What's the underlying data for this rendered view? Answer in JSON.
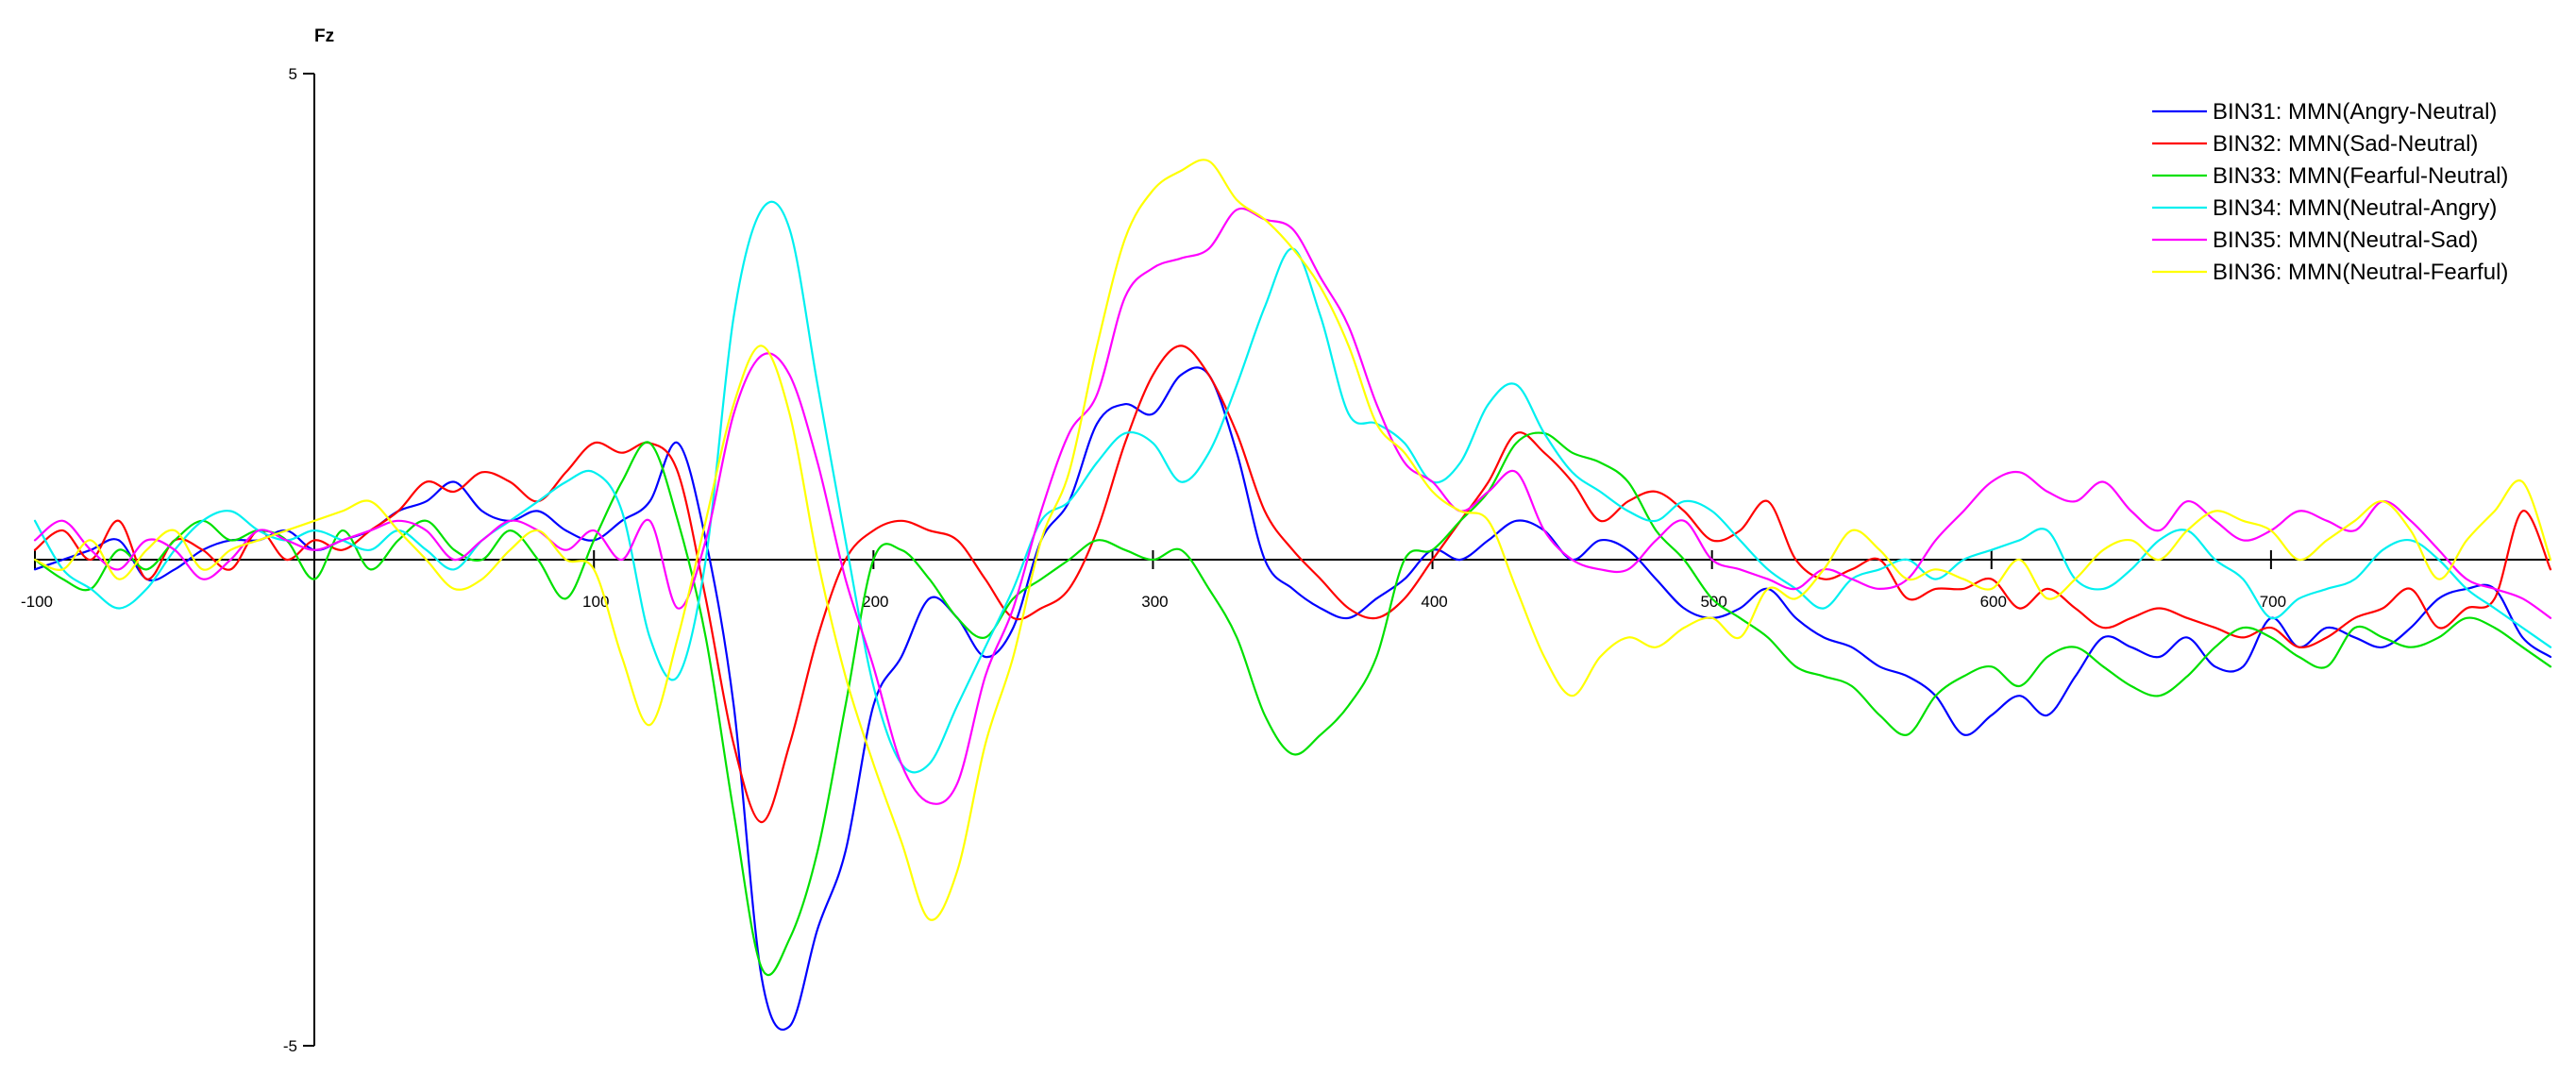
{
  "chart_data": {
    "type": "line",
    "title": "Fz",
    "xlabel": "",
    "ylabel": "",
    "xlim": [
      -100,
      800
    ],
    "ylim": [
      -5,
      5
    ],
    "x_ticks": [
      -100,
      100,
      200,
      300,
      400,
      500,
      600,
      700
    ],
    "x_tick_labels": [
      "-100",
      "100",
      "200",
      "300",
      "400",
      "500",
      "600",
      "700"
    ],
    "y_ticks": [
      5,
      -5
    ],
    "y_tick_labels": [
      "5",
      "-5"
    ],
    "grid": false,
    "legend_position": "top-right",
    "colors": {
      "axis": "#000000",
      "BIN31": "#0000ff",
      "BIN32": "#ff0000",
      "BIN33": "#00e000",
      "BIN34": "#00f0f0",
      "BIN35": "#ff00ff",
      "BIN36": "#ffff00"
    },
    "series": [
      {
        "name": "BIN31: MMN(Angry-Neutral)",
        "color": "#0000ff",
        "x": [
          -100,
          -90,
          -80,
          -70,
          -60,
          -50,
          -40,
          -30,
          -20,
          -10,
          0,
          10,
          20,
          30,
          40,
          50,
          60,
          70,
          80,
          90,
          100,
          110,
          120,
          130,
          140,
          150,
          160,
          170,
          180,
          190,
          200,
          210,
          220,
          230,
          240,
          250,
          260,
          270,
          280,
          290,
          300,
          310,
          320,
          330,
          340,
          350,
          360,
          370,
          380,
          390,
          400,
          410,
          420,
          430,
          440,
          450,
          460,
          470,
          480,
          490,
          500,
          510,
          520,
          530,
          540,
          550,
          560,
          570,
          580,
          590,
          600,
          610,
          620,
          630,
          640,
          650,
          660,
          670,
          680,
          690,
          700,
          710,
          720,
          730,
          740,
          750,
          760,
          770,
          780,
          790,
          800
        ],
        "y": [
          -0.1,
          0.0,
          0.1,
          0.2,
          -0.2,
          -0.1,
          0.1,
          0.2,
          0.2,
          0.3,
          0.1,
          0.2,
          0.3,
          0.5,
          0.6,
          0.8,
          0.5,
          0.4,
          0.5,
          0.3,
          0.2,
          0.4,
          0.6,
          1.2,
          0.2,
          -1.5,
          -4.3,
          -4.8,
          -3.8,
          -3.0,
          -1.5,
          -1.0,
          -0.4,
          -0.6,
          -1.0,
          -0.7,
          0.2,
          0.6,
          1.4,
          1.6,
          1.5,
          1.9,
          1.9,
          1.1,
          0.0,
          -0.3,
          -0.5,
          -0.6,
          -0.4,
          -0.2,
          0.1,
          0.0,
          0.2,
          0.4,
          0.3,
          0.0,
          0.2,
          0.1,
          -0.2,
          -0.5,
          -0.6,
          -0.5,
          -0.3,
          -0.6,
          -0.8,
          -0.9,
          -1.1,
          -1.2,
          -1.4,
          -1.8,
          -1.6,
          -1.4,
          -1.6,
          -1.2,
          -0.8,
          -0.9,
          -1.0,
          -0.8,
          -1.1,
          -1.1,
          -0.6,
          -0.9,
          -0.7,
          -0.8,
          -0.9,
          -0.7,
          -0.4,
          -0.3,
          -0.3,
          -0.8,
          -1.0
        ]
      },
      {
        "name": "BIN32: MMN(Sad-Neutral)",
        "color": "#ff0000",
        "x": [
          -100,
          -90,
          -80,
          -70,
          -60,
          -50,
          -40,
          -30,
          -20,
          -10,
          0,
          10,
          20,
          30,
          40,
          50,
          60,
          70,
          80,
          90,
          100,
          110,
          120,
          130,
          140,
          150,
          160,
          170,
          180,
          190,
          200,
          210,
          220,
          230,
          240,
          250,
          260,
          270,
          280,
          290,
          300,
          310,
          320,
          330,
          340,
          350,
          360,
          370,
          380,
          390,
          400,
          410,
          420,
          430,
          440,
          450,
          460,
          470,
          480,
          490,
          500,
          510,
          520,
          530,
          540,
          550,
          560,
          570,
          580,
          590,
          600,
          610,
          620,
          630,
          640,
          650,
          660,
          670,
          680,
          690,
          700,
          710,
          720,
          730,
          740,
          750,
          760,
          770,
          780,
          790,
          800
        ],
        "y": [
          0.1,
          0.3,
          0.0,
          0.4,
          -0.2,
          0.2,
          0.1,
          -0.1,
          0.3,
          0.0,
          0.2,
          0.1,
          0.3,
          0.5,
          0.8,
          0.7,
          0.9,
          0.8,
          0.6,
          0.9,
          1.2,
          1.1,
          1.2,
          0.9,
          -0.4,
          -1.9,
          -2.7,
          -1.9,
          -0.8,
          0.0,
          0.3,
          0.4,
          0.3,
          0.2,
          -0.2,
          -0.6,
          -0.5,
          -0.3,
          0.3,
          1.2,
          1.9,
          2.2,
          1.9,
          1.3,
          0.5,
          0.1,
          -0.2,
          -0.5,
          -0.6,
          -0.4,
          0.0,
          0.4,
          0.8,
          1.3,
          1.1,
          0.8,
          0.4,
          0.6,
          0.7,
          0.5,
          0.2,
          0.3,
          0.6,
          0.0,
          -0.2,
          -0.1,
          0.0,
          -0.4,
          -0.3,
          -0.3,
          -0.2,
          -0.5,
          -0.3,
          -0.5,
          -0.7,
          -0.6,
          -0.5,
          -0.6,
          -0.7,
          -0.8,
          -0.7,
          -0.9,
          -0.8,
          -0.6,
          -0.5,
          -0.3,
          -0.7,
          -0.5,
          -0.4,
          0.5,
          -0.1
        ]
      },
      {
        "name": "BIN33: MMN(Fearful-Neutral)",
        "color": "#00e000",
        "x": [
          -100,
          -90,
          -80,
          -70,
          -60,
          -50,
          -40,
          -30,
          -20,
          -10,
          0,
          10,
          20,
          30,
          40,
          50,
          60,
          70,
          80,
          90,
          100,
          110,
          120,
          130,
          140,
          150,
          160,
          170,
          180,
          190,
          200,
          210,
          220,
          230,
          240,
          250,
          260,
          270,
          280,
          290,
          300,
          310,
          320,
          330,
          340,
          350,
          360,
          370,
          380,
          390,
          400,
          410,
          420,
          430,
          440,
          450,
          460,
          470,
          480,
          490,
          500,
          510,
          520,
          530,
          540,
          550,
          560,
          570,
          580,
          590,
          600,
          610,
          620,
          630,
          640,
          650,
          660,
          670,
          680,
          690,
          700,
          710,
          720,
          730,
          740,
          750,
          760,
          770,
          780,
          790,
          800
        ],
        "y": [
          0.0,
          -0.2,
          -0.3,
          0.1,
          -0.1,
          0.2,
          0.4,
          0.2,
          0.3,
          0.2,
          -0.2,
          0.3,
          -0.1,
          0.2,
          0.4,
          0.1,
          0.0,
          0.3,
          0.0,
          -0.4,
          0.2,
          0.8,
          1.2,
          0.4,
          -0.8,
          -2.6,
          -4.2,
          -3.9,
          -3.0,
          -1.5,
          0.0,
          0.1,
          -0.2,
          -0.6,
          -0.8,
          -0.4,
          -0.2,
          0.0,
          0.2,
          0.1,
          0.0,
          0.1,
          -0.3,
          -0.8,
          -1.6,
          -2.0,
          -1.8,
          -1.5,
          -1.0,
          0.0,
          0.1,
          0.4,
          0.7,
          1.2,
          1.3,
          1.1,
          1.0,
          0.8,
          0.3,
          0.0,
          -0.4,
          -0.6,
          -0.8,
          -1.1,
          -1.2,
          -1.3,
          -1.6,
          -1.8,
          -1.4,
          -1.2,
          -1.1,
          -1.3,
          -1.0,
          -0.9,
          -1.1,
          -1.3,
          -1.4,
          -1.2,
          -0.9,
          -0.7,
          -0.8,
          -1.0,
          -1.1,
          -0.7,
          -0.8,
          -0.9,
          -0.8,
          -0.6,
          -0.7,
          -0.9,
          -1.1
        ]
      },
      {
        "name": "BIN34: MMN(Neutral-Angry)",
        "color": "#00f0f0",
        "x": [
          -100,
          -90,
          -80,
          -70,
          -60,
          -50,
          -40,
          -30,
          -20,
          -10,
          0,
          10,
          20,
          30,
          40,
          50,
          60,
          70,
          80,
          90,
          100,
          110,
          120,
          130,
          140,
          150,
          160,
          170,
          180,
          190,
          200,
          210,
          220,
          230,
          240,
          250,
          260,
          270,
          280,
          290,
          300,
          310,
          320,
          330,
          340,
          350,
          360,
          370,
          380,
          390,
          400,
          410,
          420,
          430,
          440,
          450,
          460,
          470,
          480,
          490,
          500,
          510,
          520,
          530,
          540,
          550,
          560,
          570,
          580,
          590,
          600,
          610,
          620,
          630,
          640,
          650,
          660,
          670,
          680,
          690,
          700,
          710,
          720,
          730,
          740,
          750,
          760,
          770,
          780,
          790,
          800
        ],
        "y": [
          0.4,
          -0.1,
          -0.3,
          -0.5,
          -0.3,
          0.1,
          0.4,
          0.5,
          0.3,
          0.2,
          0.3,
          0.2,
          0.1,
          0.3,
          0.1,
          -0.1,
          0.2,
          0.4,
          0.6,
          0.8,
          0.9,
          0.5,
          -0.8,
          -1.2,
          0.0,
          2.5,
          3.6,
          3.4,
          1.8,
          0.2,
          -1.3,
          -2.1,
          -2.1,
          -1.5,
          -0.9,
          -0.3,
          0.4,
          0.6,
          1.0,
          1.3,
          1.2,
          0.8,
          1.1,
          1.8,
          2.6,
          3.2,
          2.5,
          1.5,
          1.4,
          1.2,
          0.8,
          1.0,
          1.6,
          1.8,
          1.3,
          0.9,
          0.7,
          0.5,
          0.4,
          0.6,
          0.5,
          0.2,
          -0.1,
          -0.3,
          -0.5,
          -0.2,
          -0.1,
          0.0,
          -0.2,
          0.0,
          0.1,
          0.2,
          0.3,
          -0.2,
          -0.3,
          -0.1,
          0.2,
          0.3,
          0.0,
          -0.2,
          -0.6,
          -0.4,
          -0.3,
          -0.2,
          0.1,
          0.2,
          0.0,
          -0.3,
          -0.5,
          -0.7,
          -0.9
        ]
      },
      {
        "name": "BIN35: MMN(Neutral-Sad)",
        "color": "#ff00ff",
        "x": [
          -100,
          -90,
          -80,
          -70,
          -60,
          -50,
          -40,
          -30,
          -20,
          -10,
          0,
          10,
          20,
          30,
          40,
          50,
          60,
          70,
          80,
          90,
          100,
          110,
          120,
          130,
          140,
          150,
          160,
          170,
          180,
          190,
          200,
          210,
          220,
          230,
          240,
          250,
          260,
          270,
          280,
          290,
          300,
          310,
          320,
          330,
          340,
          350,
          360,
          370,
          380,
          390,
          400,
          410,
          420,
          430,
          440,
          450,
          460,
          470,
          480,
          490,
          500,
          510,
          520,
          530,
          540,
          550,
          560,
          570,
          580,
          590,
          600,
          610,
          620,
          630,
          640,
          650,
          660,
          670,
          680,
          690,
          700,
          710,
          720,
          730,
          740,
          750,
          760,
          770,
          780,
          790,
          800
        ],
        "y": [
          0.2,
          0.4,
          0.1,
          -0.1,
          0.2,
          0.1,
          -0.2,
          0.0,
          0.3,
          0.2,
          0.1,
          0.2,
          0.3,
          0.4,
          0.3,
          0.0,
          0.2,
          0.4,
          0.3,
          0.1,
          0.3,
          0.0,
          0.4,
          -0.5,
          0.2,
          1.5,
          2.1,
          1.9,
          1.0,
          -0.2,
          -1.1,
          -2.1,
          -2.5,
          -2.3,
          -1.2,
          -0.5,
          0.5,
          1.3,
          1.7,
          2.7,
          3.0,
          3.1,
          3.2,
          3.6,
          3.5,
          3.4,
          2.9,
          2.4,
          1.6,
          1.0,
          0.8,
          0.5,
          0.7,
          0.9,
          0.3,
          0.0,
          -0.1,
          -0.1,
          0.2,
          0.4,
          0.0,
          -0.1,
          -0.2,
          -0.3,
          -0.1,
          -0.2,
          -0.3,
          -0.2,
          0.2,
          0.5,
          0.8,
          0.9,
          0.7,
          0.6,
          0.8,
          0.5,
          0.3,
          0.6,
          0.4,
          0.2,
          0.3,
          0.5,
          0.4,
          0.3,
          0.6,
          0.4,
          0.1,
          -0.2,
          -0.3,
          -0.4,
          -0.6
        ]
      },
      {
        "name": "BIN36: MMN(Neutral-Fearful)",
        "color": "#ffff00",
        "x": [
          -100,
          -90,
          -80,
          -70,
          -60,
          -50,
          -40,
          -30,
          -20,
          -10,
          0,
          10,
          20,
          30,
          40,
          50,
          60,
          70,
          80,
          90,
          100,
          110,
          120,
          130,
          140,
          150,
          160,
          170,
          180,
          190,
          200,
          210,
          220,
          230,
          240,
          250,
          260,
          270,
          280,
          290,
          300,
          310,
          320,
          330,
          340,
          350,
          360,
          370,
          380,
          390,
          400,
          410,
          420,
          430,
          440,
          450,
          460,
          470,
          480,
          490,
          500,
          510,
          520,
          530,
          540,
          550,
          560,
          570,
          580,
          590,
          600,
          610,
          620,
          630,
          640,
          650,
          660,
          670,
          680,
          690,
          700,
          710,
          720,
          730,
          740,
          750,
          760,
          770,
          780,
          790,
          800
        ],
        "y": [
          0.0,
          -0.1,
          0.2,
          -0.2,
          0.1,
          0.3,
          -0.1,
          0.1,
          0.2,
          0.3,
          0.4,
          0.5,
          0.6,
          0.3,
          0.0,
          -0.3,
          -0.2,
          0.1,
          0.3,
          0.0,
          -0.1,
          -1.0,
          -1.7,
          -0.8,
          0.4,
          1.6,
          2.2,
          1.5,
          0.0,
          -1.2,
          -2.1,
          -2.9,
          -3.7,
          -3.2,
          -1.9,
          -1.0,
          0.2,
          0.9,
          2.2,
          3.3,
          3.8,
          4.0,
          4.1,
          3.7,
          3.5,
          3.2,
          2.8,
          2.2,
          1.4,
          1.1,
          0.7,
          0.5,
          0.4,
          -0.3,
          -1.0,
          -1.4,
          -1.0,
          -0.8,
          -0.9,
          -0.7,
          -0.6,
          -0.8,
          -0.3,
          -0.4,
          -0.1,
          0.3,
          0.1,
          -0.2,
          -0.1,
          -0.2,
          -0.3,
          0.0,
          -0.4,
          -0.2,
          0.1,
          0.2,
          0.0,
          0.3,
          0.5,
          0.4,
          0.3,
          0.0,
          0.2,
          0.4,
          0.6,
          0.3,
          -0.2,
          0.2,
          0.5,
          0.8,
          0.0
        ]
      }
    ]
  }
}
